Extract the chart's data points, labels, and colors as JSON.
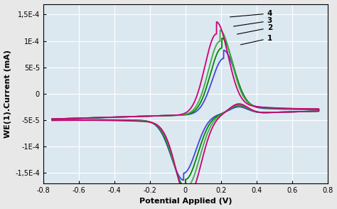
{
  "xlabel": "Potential Applied (V)",
  "ylabel": "WE(1).Current (mA)",
  "xlim": [
    -0.8,
    0.8
  ],
  "ylim": [
    -0.00017,
    0.00017
  ],
  "xticks": [
    -0.8,
    -0.6,
    -0.4,
    -0.2,
    0.0,
    0.2,
    0.4,
    0.6,
    0.8
  ],
  "ytick_labels": [
    "-1,5E-4",
    "-1E-4",
    "-5E-5",
    "0",
    "5E-5",
    "1E-4",
    "1,5E-4"
  ],
  "ytick_values": [
    -0.00015,
    -0.0001,
    -5e-05,
    0,
    5e-05,
    0.0001,
    0.00015
  ],
  "background_color": "#dce8f0",
  "fig_background": "#e8e8e8",
  "colors": [
    "#4444dd",
    "#008800",
    "#44aa44",
    "#cc0077"
  ],
  "labels": [
    "1",
    "2",
    "3",
    "4"
  ],
  "anodic_peaks": [
    0.000105,
    0.000125,
    0.000138,
    0.000152
  ],
  "cathodic_peaks": [
    -0.00011,
    -0.000122,
    -0.000135,
    -0.00015
  ],
  "anodic_peak_v": [
    0.215,
    0.205,
    0.195,
    0.175
  ],
  "cathodic_peak_v": [
    -0.01,
    0.0,
    0.01,
    0.02
  ],
  "lw": 1.3
}
